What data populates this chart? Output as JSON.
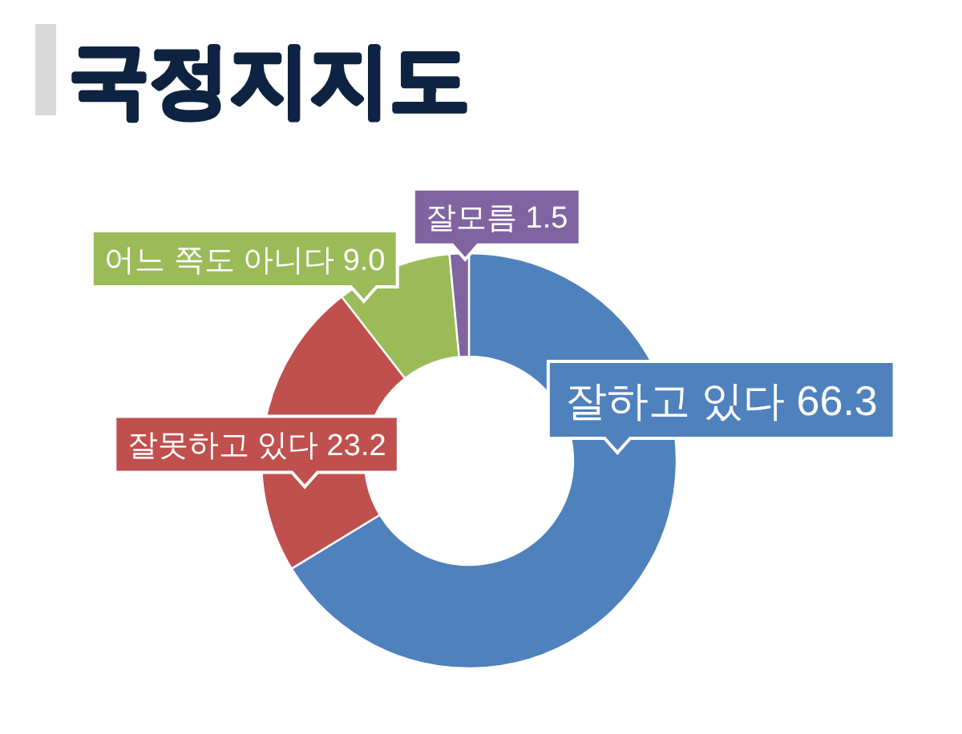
{
  "chart_data": {
    "type": "donut",
    "title": "국정지지도",
    "categories": [
      "잘하고 있다",
      "잘못하고 있다",
      "어느 쪽도 아니다",
      "잘모름"
    ],
    "values": [
      66.3,
      23.2,
      9.0,
      1.5
    ],
    "colors": [
      "#4f81bd",
      "#c0504d",
      "#9bbb59",
      "#8064a2"
    ],
    "value_labels": [
      "66.3",
      "23.2",
      "9.0",
      "1.5"
    ]
  }
}
